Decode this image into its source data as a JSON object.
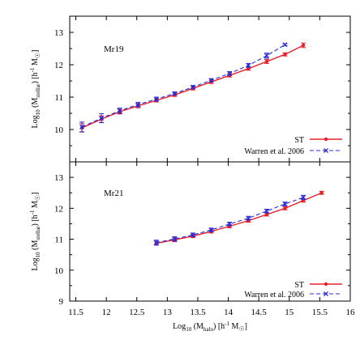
{
  "chart_data": {
    "type": "line",
    "x_label": "Log₁₀ (M_halo) [h⁻¹ M☉]",
    "x_label_parts": {
      "pre": "Log",
      "sub": "10",
      "mid": " (M",
      "sub2": "halo",
      "post": ") [h",
      "sup": "-1",
      "unit": " M",
      "sun": "☉",
      "end": "]"
    },
    "y_label_parts": {
      "pre": "Log",
      "sub": "10",
      "mid": " (M",
      "sub2": "stellar",
      "post": ") [h",
      "sup": "-1",
      "unit": " M",
      "sun": "☉",
      "end": "]"
    },
    "x_ticks": [
      "11.5",
      "12",
      "12.5",
      "13",
      "13.5",
      "14",
      "14.5",
      "15",
      "15.5",
      "16"
    ],
    "xlim": [
      11.4,
      16
    ],
    "colors": {
      "ST": "#e8202a",
      "Warren": "#2b2bd6"
    },
    "panels": [
      {
        "label": "Mr19",
        "ylim": [
          9,
          13.5
        ],
        "y_ticks": [
          "9",
          "10",
          "11",
          "12",
          "13"
        ],
        "legend": [
          "ST",
          "Warren et al. 2006"
        ],
        "series": [
          {
            "name": "ST",
            "x": [
              11.6,
              11.92,
              12.22,
              12.52,
              12.82,
              13.12,
              13.42,
              13.72,
              14.02,
              14.33,
              14.63,
              14.93,
              15.23
            ],
            "y": [
              10.05,
              10.32,
              10.55,
              10.73,
              10.9,
              11.07,
              11.27,
              11.47,
              11.67,
              11.88,
              12.1,
              12.32,
              12.6
            ],
            "err": [
              0.13,
              0.1,
              0.07,
              0.06,
              0.05,
              0.05,
              0.05,
              0.05,
              0.05,
              0.05,
              0.06,
              0.05,
              0.07
            ]
          },
          {
            "name": "Warren et al. 2006",
            "x": [
              11.6,
              11.92,
              12.22,
              12.52,
              12.82,
              13.12,
              13.42,
              13.72,
              14.02,
              14.33,
              14.63,
              14.93
            ],
            "y": [
              10.08,
              10.35,
              10.58,
              10.77,
              10.94,
              11.11,
              11.31,
              11.52,
              11.73,
              11.98,
              12.28,
              12.62
            ],
            "err": [
              0.15,
              0.14,
              0.08,
              0.07,
              0.06,
              0.05,
              0.05,
              0.05,
              0.06,
              0.06,
              0.08,
              0.03
            ]
          }
        ]
      },
      {
        "label": "Mr21",
        "ylim": [
          9,
          13.5
        ],
        "y_ticks": [
          "9",
          "10",
          "11",
          "12",
          "13"
        ],
        "legend": [
          "ST",
          "Warren et al. 2006"
        ],
        "series": [
          {
            "name": "ST",
            "x": [
              12.82,
              13.12,
              13.42,
              13.72,
              14.02,
              14.33,
              14.63,
              14.93,
              15.23,
              15.53
            ],
            "y": [
              10.87,
              10.98,
              11.1,
              11.25,
              11.42,
              11.6,
              11.8,
              12.0,
              12.25,
              12.5
            ],
            "err": [
              0.06,
              0.06,
              0.05,
              0.05,
              0.05,
              0.05,
              0.05,
              0.05,
              0.05,
              0.05
            ]
          },
          {
            "name": "Warren et al. 2006",
            "x": [
              12.82,
              13.12,
              13.42,
              13.72,
              14.02,
              14.33,
              14.63,
              14.93,
              15.23
            ],
            "y": [
              10.89,
              11.01,
              11.14,
              11.3,
              11.49,
              11.68,
              11.91,
              12.14,
              12.35
            ],
            "err": [
              0.08,
              0.07,
              0.06,
              0.06,
              0.06,
              0.06,
              0.06,
              0.06,
              0.07
            ]
          }
        ]
      }
    ]
  }
}
